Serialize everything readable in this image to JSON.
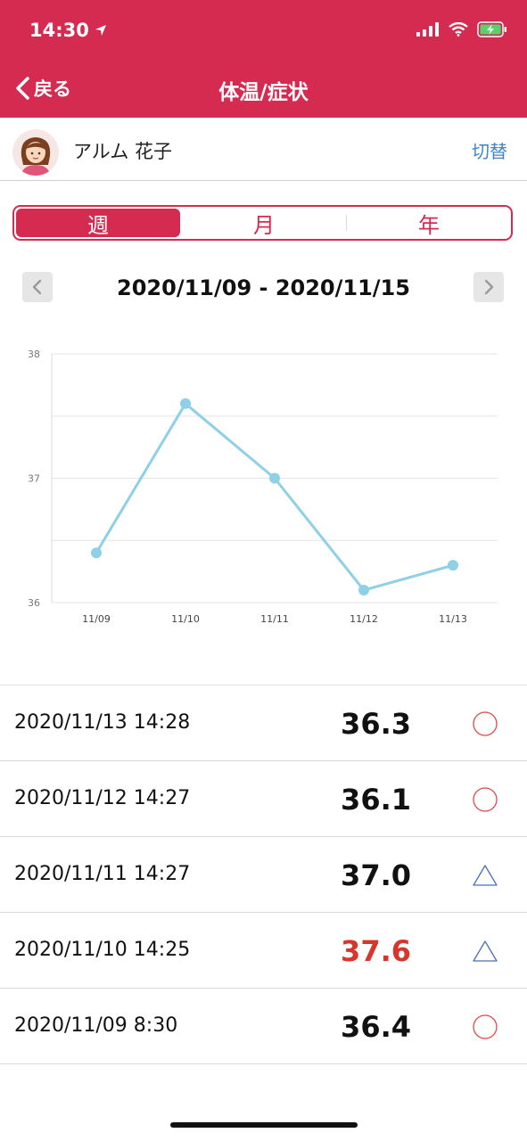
{
  "status_bar": {
    "time": "14:30"
  },
  "nav": {
    "back_label": "戻る",
    "title": "体温/症状"
  },
  "profile": {
    "name": "アルム 花子",
    "switch_label": "切替"
  },
  "segments": [
    {
      "label": "週",
      "active": true
    },
    {
      "label": "月",
      "active": false
    },
    {
      "label": "年",
      "active": false
    }
  ],
  "date_range": "2020/11/09 - 2020/11/15",
  "colors": {
    "header": "#d52b51",
    "line": "#8dd0e8",
    "high_temp": "#d8362c",
    "circle_mark": "#e0464b",
    "triangle_mark": "#4a6fb5"
  },
  "chart_data": {
    "type": "line",
    "categories": [
      "11/09",
      "11/10",
      "11/11",
      "11/12",
      "11/13"
    ],
    "values": [
      36.4,
      37.6,
      37.0,
      36.1,
      36.3
    ],
    "ylim": [
      36,
      38
    ],
    "yticks": [
      36,
      37,
      38
    ],
    "grid": true
  },
  "records": [
    {
      "datetime": "2020/11/13 14:28",
      "temp": "36.3",
      "high": false,
      "mark": "circle"
    },
    {
      "datetime": "2020/11/12 14:27",
      "temp": "36.1",
      "high": false,
      "mark": "circle"
    },
    {
      "datetime": "2020/11/11 14:27",
      "temp": "37.0",
      "high": false,
      "mark": "triangle"
    },
    {
      "datetime": "2020/11/10 14:25",
      "temp": "37.6",
      "high": true,
      "mark": "triangle"
    },
    {
      "datetime": "2020/11/09 8:30",
      "temp": "36.4",
      "high": false,
      "mark": "circle"
    }
  ]
}
